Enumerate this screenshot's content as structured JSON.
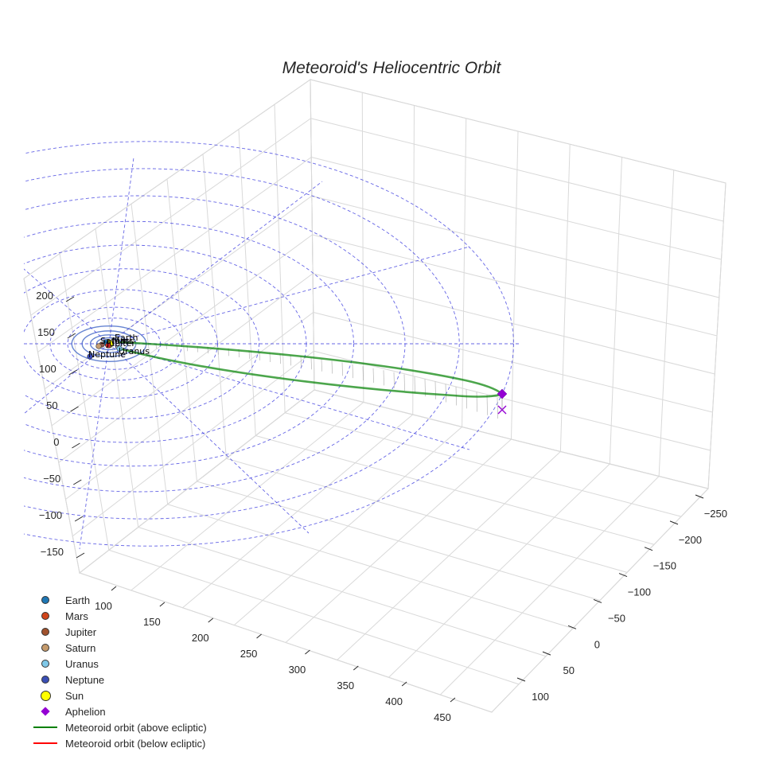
{
  "chart_data": {
    "type": "line",
    "title": "Meteoroid's Heliocentric Orbit",
    "projection": "3d",
    "grid": true,
    "legend_position": "bottom-left",
    "axes": {
      "x": {
        "ticks": [
          "100",
          "150",
          "200",
          "250",
          "300",
          "350",
          "400",
          "450"
        ],
        "range": [
          75,
          475
        ]
      },
      "y": {
        "ticks": [
          "−250",
          "−200",
          "−150",
          "−100",
          "−50",
          "0",
          "50",
          "100"
        ],
        "range": [
          -275,
          125
        ]
      },
      "z": {
        "ticks": [
          "−150",
          "−100",
          "−50",
          "0",
          "50",
          "100",
          "150",
          "200"
        ],
        "range": [
          -175,
          225
        ]
      }
    },
    "planets": [
      {
        "name": "Earth",
        "label": "Earth",
        "color": "#1f77b4"
      },
      {
        "name": "Mars",
        "label": "Mars",
        "color": "#d62728"
      },
      {
        "name": "Jupiter",
        "label": "Jupiter",
        "color": "#8c564b"
      },
      {
        "name": "Saturn",
        "label": "Saturn",
        "color": "#c49c72"
      },
      {
        "name": "Uranus",
        "label": "Uranus",
        "color": "#7ec8e3"
      },
      {
        "name": "Neptune",
        "label": "Neptune",
        "color": "#3b4cc0"
      }
    ],
    "series": [
      {
        "name": "Earth",
        "marker": "circle",
        "color": "#1f77b4"
      },
      {
        "name": "Mars",
        "marker": "circle",
        "color": "#d0451b"
      },
      {
        "name": "Jupiter",
        "marker": "circle",
        "color": "#a0522d"
      },
      {
        "name": "Saturn",
        "marker": "circle",
        "color": "#c49a6c"
      },
      {
        "name": "Uranus",
        "marker": "circle",
        "color": "#7fc8e8"
      },
      {
        "name": "Neptune",
        "marker": "circle",
        "color": "#3a4fb5"
      },
      {
        "name": "Sun",
        "marker": "circle",
        "color": "#ffff00"
      },
      {
        "name": "Aphelion",
        "marker": "diamond",
        "color": "#9400d3"
      },
      {
        "name": "Meteoroid orbit (above ecliptic)",
        "marker": "line",
        "color": "#008000"
      },
      {
        "name": "Meteoroid orbit (below ecliptic)",
        "marker": "line",
        "color": "#ff0000"
      }
    ],
    "sun": {
      "x": 0,
      "y": 0,
      "z": 0
    },
    "aphelion": {
      "x": 455,
      "y": 35,
      "z": 0
    },
    "orbit_rings_au": [
      1.0,
      1.5,
      5.2,
      9.5,
      19.2,
      30.1,
      60,
      100,
      140,
      180,
      220,
      260,
      300
    ]
  }
}
